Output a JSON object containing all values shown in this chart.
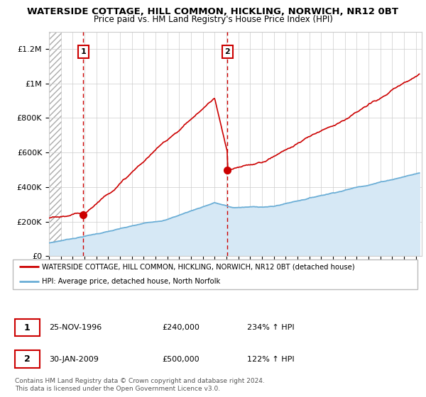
{
  "title_line1": "WATERSIDE COTTAGE, HILL COMMON, HICKLING, NORWICH, NR12 0BT",
  "title_line2": "Price paid vs. HM Land Registry's House Price Index (HPI)",
  "ylim": [
    0,
    1300000
  ],
  "xlim_start": 1994.0,
  "xlim_end": 2025.5,
  "hpi_color": "#6baed6",
  "price_color": "#cc0000",
  "hpi_fill_color": "#d6e8f5",
  "sale1_date": 1996.9,
  "sale1_price": 240000,
  "sale2_date": 2009.08,
  "sale2_price": 500000,
  "legend_label1": "WATERSIDE COTTAGE, HILL COMMON, HICKLING, NORWICH, NR12 0BT (detached house)",
  "legend_label2": "HPI: Average price, detached house, North Norfolk",
  "footer_line1": "Contains HM Land Registry data © Crown copyright and database right 2024.",
  "footer_line2": "This data is licensed under the Open Government Licence v3.0.",
  "table_row1": [
    "1",
    "25-NOV-1996",
    "£240,000",
    "234% ↑ HPI"
  ],
  "table_row2": [
    "2",
    "30-JAN-2009",
    "£500,000",
    "122% ↑ HPI"
  ],
  "yticks": [
    0,
    200000,
    400000,
    600000,
    800000,
    1000000,
    1200000
  ],
  "ytick_labels": [
    "£0",
    "£200K",
    "£400K",
    "£600K",
    "£800K",
    "£1M",
    "£1.2M"
  ],
  "xticks": [
    1994,
    1995,
    1996,
    1997,
    1998,
    1999,
    2000,
    2001,
    2002,
    2003,
    2004,
    2005,
    2006,
    2007,
    2008,
    2009,
    2010,
    2011,
    2012,
    2013,
    2014,
    2015,
    2016,
    2017,
    2018,
    2019,
    2020,
    2021,
    2022,
    2023,
    2024,
    2025
  ]
}
